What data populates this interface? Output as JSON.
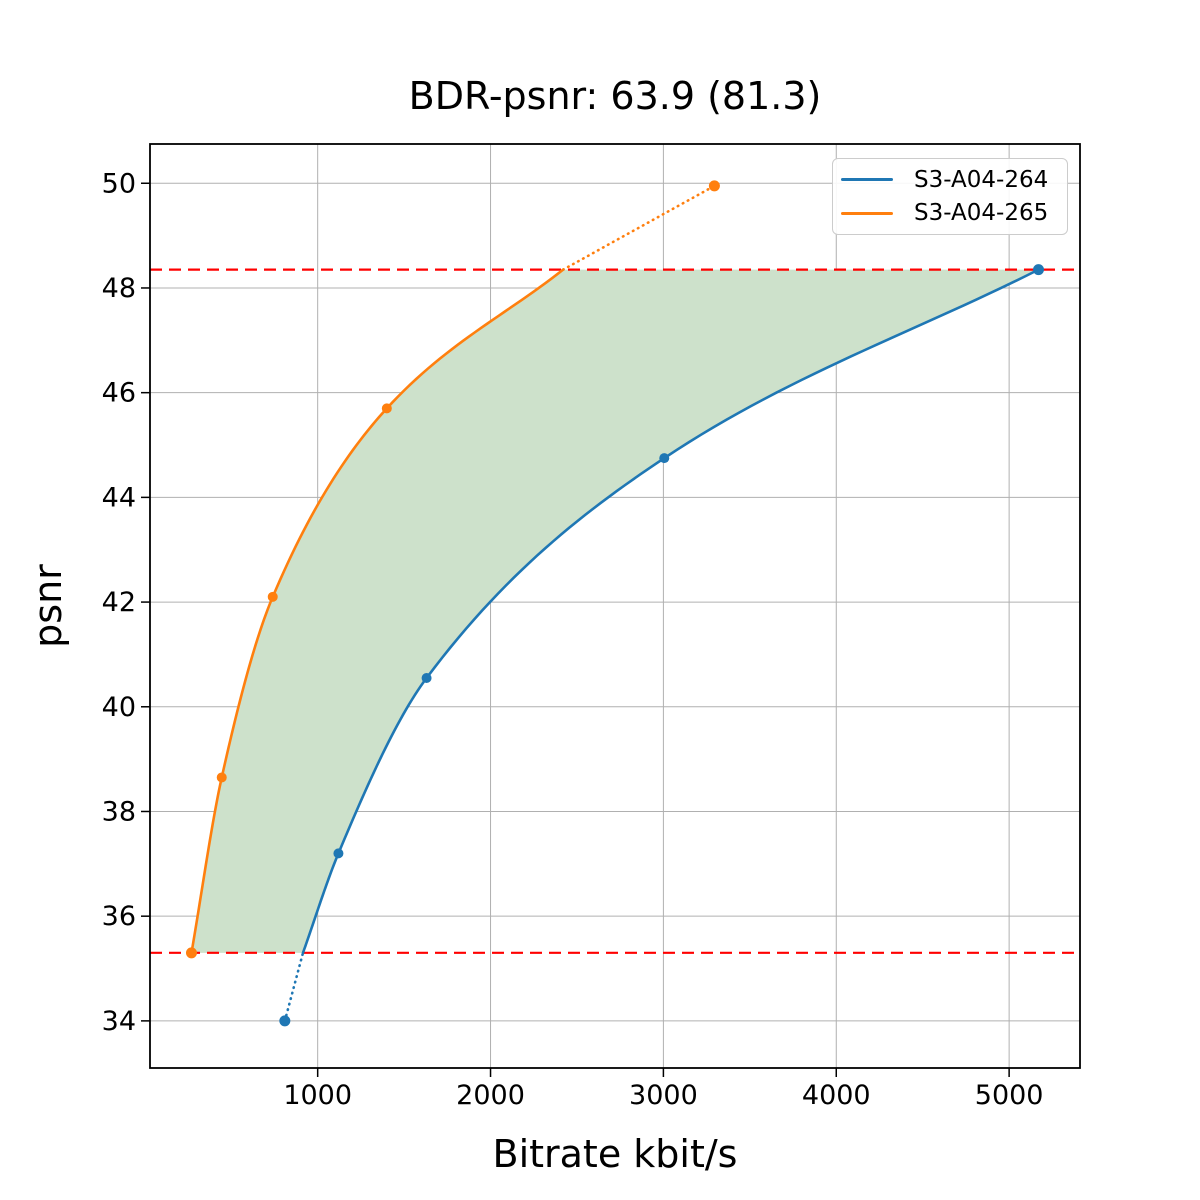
{
  "chart_data": {
    "type": "line",
    "title": "BDR-psnr: 63.9 (81.3)",
    "xlabel": "Bitrate kbit/s",
    "ylabel": "psnr",
    "xlim": [
      30,
      5410
    ],
    "ylim": [
      33.1,
      50.75
    ],
    "xticks": [
      1000,
      2000,
      3000,
      4000,
      5000
    ],
    "yticks": [
      34,
      36,
      38,
      40,
      42,
      44,
      46,
      48,
      50
    ],
    "grid": true,
    "legend_position": "upper right",
    "series": [
      {
        "name": "S3-A04-264",
        "color": "#1f77b4",
        "points": [
          [
            810,
            34.0
          ],
          [
            1120,
            37.2
          ],
          [
            1630,
            40.55
          ],
          [
            3005,
            44.75
          ],
          [
            5170,
            48.35
          ]
        ],
        "solid_points": [
          [
            915,
            35.3
          ],
          [
            1120,
            37.2
          ],
          [
            1630,
            40.55
          ],
          [
            3005,
            44.75
          ],
          [
            5170,
            48.35
          ]
        ],
        "dotted_segment": [
          [
            810,
            34.0
          ],
          [
            915,
            35.3
          ]
        ]
      },
      {
        "name": "S3-A04-265",
        "color": "#ff7f0e",
        "points": [
          [
            270,
            35.3
          ],
          [
            445,
            38.65
          ],
          [
            740,
            42.1
          ],
          [
            1400,
            45.7
          ],
          [
            3295,
            49.95
          ]
        ],
        "solid_points": [
          [
            270,
            35.3
          ],
          [
            445,
            38.65
          ],
          [
            740,
            42.1
          ],
          [
            1400,
            45.7
          ],
          [
            2420,
            48.35
          ]
        ],
        "dotted_segment": [
          [
            2420,
            48.35
          ],
          [
            3295,
            49.95
          ]
        ]
      }
    ],
    "hlines": [
      {
        "y": 48.35,
        "color": "#ff0000",
        "style": "dashed"
      },
      {
        "y": 35.3,
        "color": "#ff0000",
        "style": "dashed"
      }
    ],
    "shaded_region": {
      "between": [
        "S3-A04-265",
        "S3-A04-264"
      ],
      "psnr_range": [
        35.3,
        48.35
      ],
      "fill_color": "#cde1cb"
    },
    "colors": {
      "grid": "#b0b0b0",
      "spine": "#000000",
      "background": "#ffffff"
    }
  }
}
